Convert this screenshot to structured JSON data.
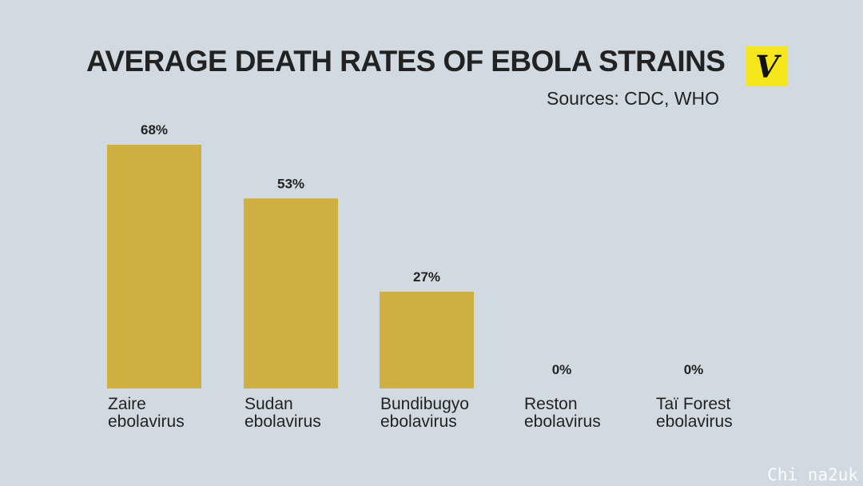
{
  "header": {
    "title": "AVERAGE DEATH RATES OF EBOLA STRAINS",
    "sources": "Sources: CDC, WHO",
    "logo_icon": "vox-logo-icon",
    "logo_color": "#f5e71b",
    "logo_letter": "V"
  },
  "colors": {
    "background": "#d1dae1",
    "bar": "#cfae42",
    "text": "#222222"
  },
  "chart_data": {
    "type": "bar",
    "title": "AVERAGE DEATH RATES OF EBOLA STRAINS",
    "subtitle": "Sources: CDC, WHO",
    "xlabel": "",
    "ylabel": "",
    "ylim": [
      0,
      68
    ],
    "grid": false,
    "categories": [
      [
        "Zaire",
        "ebolavirus"
      ],
      [
        "Sudan",
        "ebolavirus"
      ],
      [
        "Bundibugyo",
        "ebolavirus"
      ],
      [
        "Reston",
        "ebolavirus"
      ],
      [
        "Taï Forest",
        "ebolavirus"
      ]
    ],
    "values": [
      68,
      53,
      27,
      0,
      0
    ],
    "data_labels": [
      "68%",
      "53%",
      "27%",
      "0%",
      "0%"
    ]
  },
  "watermark": "Chi na2uk"
}
